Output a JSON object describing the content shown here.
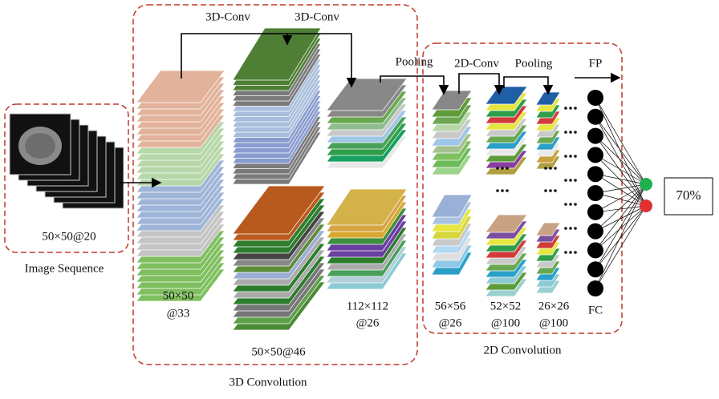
{
  "input": {
    "label": "50×50@20",
    "caption": "Image Sequence"
  },
  "operations": [
    "3D-Conv",
    "3D-Conv",
    "Pooling",
    "2D-Conv",
    "Pooling",
    "FP"
  ],
  "stacks": [
    {
      "size": "50×50",
      "channels": "@33"
    },
    {
      "size": "50×50@46"
    },
    {
      "size": "112×112",
      "channels": "@26"
    },
    {
      "size": "56×56",
      "channels": "@26"
    },
    {
      "size": "52×52",
      "channels": "@100"
    },
    {
      "size": "26×26",
      "channels": "@100"
    }
  ],
  "fc_label": "FC",
  "output": "70%",
  "groups": [
    "3D Convolution",
    "2D Convolution"
  ]
}
